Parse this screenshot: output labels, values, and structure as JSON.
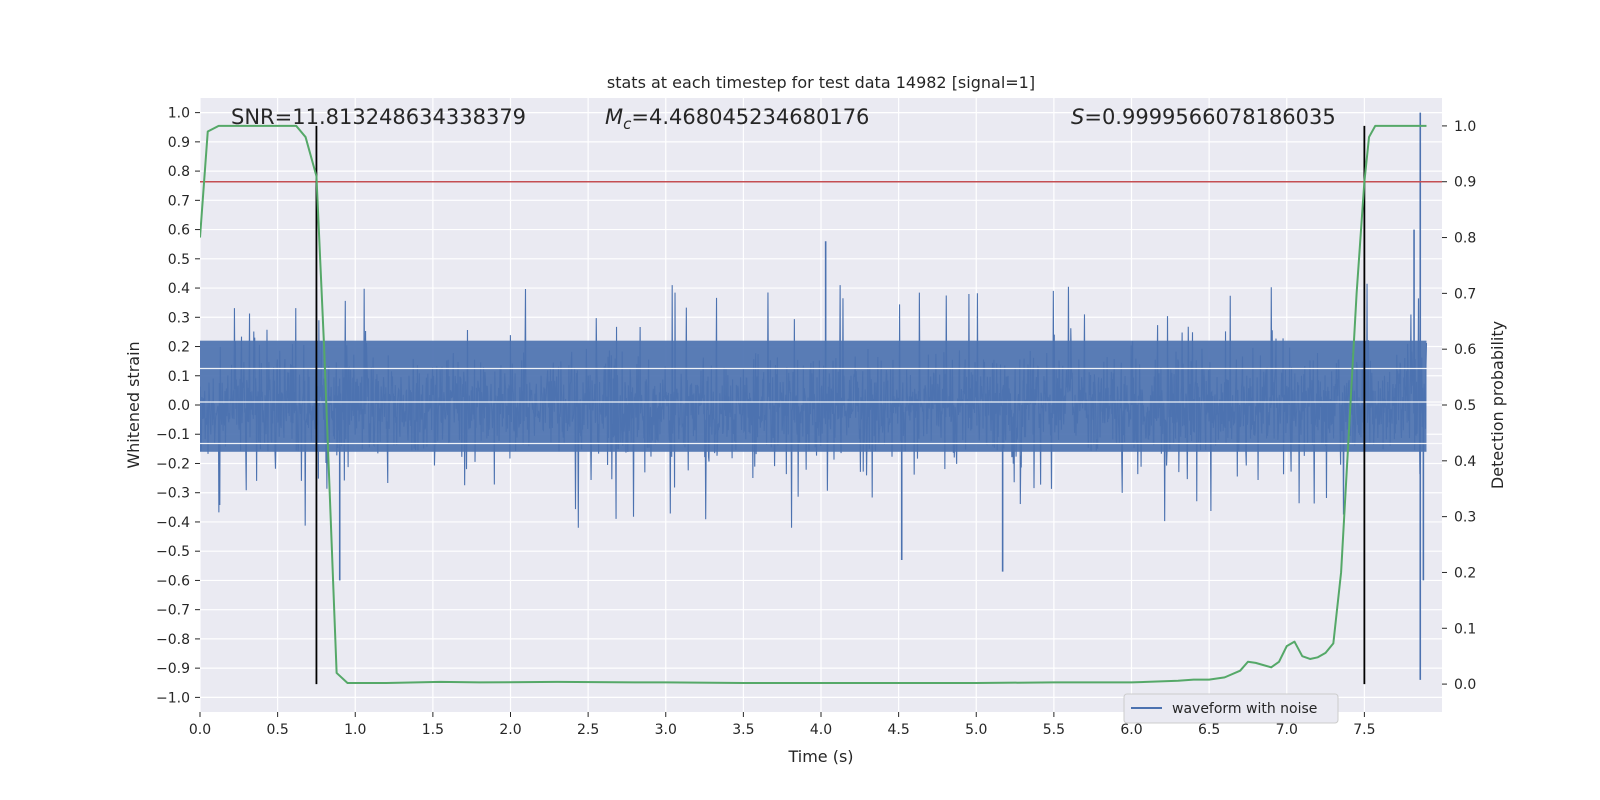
{
  "chart_data": {
    "type": "line",
    "title": "stats at each timestep for test data 14982 [signal=1]",
    "xlabel": "Time (s)",
    "ylabel": "Whitened strain",
    "ylabel_right": "Detection probability",
    "xlim": [
      0.0,
      8.0
    ],
    "ylim": [
      -1.05,
      1.05
    ],
    "ylim_right": [
      -0.05,
      1.05
    ],
    "x_ticks": [
      "0.0",
      "0.5",
      "1.0",
      "1.5",
      "2.0",
      "2.5",
      "3.0",
      "3.5",
      "4.0",
      "4.5",
      "5.0",
      "5.5",
      "6.0",
      "6.5",
      "7.0",
      "7.5"
    ],
    "y_ticks": [
      "1.0",
      "0.9",
      "0.8",
      "0.7",
      "0.6",
      "0.5",
      "0.4",
      "0.3",
      "0.2",
      "0.1",
      "0.0",
      "−0.1",
      "−0.2",
      "−0.3",
      "−0.4",
      "−0.5",
      "−0.6",
      "−0.7",
      "−0.8",
      "−0.9",
      "−1.0"
    ],
    "y_ticks_right": [
      "1.0",
      "0.9",
      "0.8",
      "0.7",
      "0.6",
      "0.5",
      "0.4",
      "0.3",
      "0.2",
      "0.1",
      "0.0"
    ],
    "grid": true,
    "legend": {
      "position": "lower-right",
      "entries": [
        "waveform with noise"
      ]
    },
    "annotations": {
      "snr": "SNR=11.813248634338379",
      "mc_symbol": "M",
      "mc_sub": "c",
      "mc_value": "=4.468045234680176",
      "s_symbol": "S",
      "s_value": "=0.9999566078186035"
    },
    "threshold": {
      "value": 0.9,
      "axis": "right",
      "color": "#c44e52"
    },
    "vlines": [
      0.75,
      7.5
    ],
    "series": [
      {
        "name": "waveform with noise",
        "axis": "left",
        "color": "#4c72b0",
        "kind": "noise",
        "core_amplitude": 0.22,
        "spike_amplitude": 0.35,
        "notable_peaks": [
          {
            "x": 7.86,
            "y": 1.0
          },
          {
            "x": 7.86,
            "y": -0.94
          },
          {
            "x": 7.82,
            "y": 0.6
          },
          {
            "x": 7.88,
            "y": -0.6
          },
          {
            "x": 0.9,
            "y": -0.6
          },
          {
            "x": 4.03,
            "y": 0.56
          },
          {
            "x": 5.17,
            "y": -0.57
          },
          {
            "x": 4.52,
            "y": -0.53
          }
        ]
      },
      {
        "axis": "right",
        "color": "#55a868",
        "kind": "line",
        "x": [
          0.0,
          0.05,
          0.12,
          0.3,
          0.5,
          0.62,
          0.68,
          0.75,
          0.8,
          0.88,
          0.95,
          1.2,
          1.55,
          1.8,
          2.3,
          2.8,
          3.0,
          3.5,
          4.0,
          4.5,
          5.0,
          5.5,
          6.0,
          6.3,
          6.4,
          6.5,
          6.6,
          6.7,
          6.75,
          6.8,
          6.85,
          6.9,
          6.95,
          7.0,
          7.05,
          7.1,
          7.15,
          7.2,
          7.25,
          7.3,
          7.35,
          7.4,
          7.45,
          7.5,
          7.53,
          7.57,
          7.63,
          7.9
        ],
        "y": [
          0.8,
          0.99,
          1.0,
          1.0,
          1.0,
          1.0,
          0.98,
          0.91,
          0.6,
          0.02,
          0.002,
          0.002,
          0.004,
          0.003,
          0.004,
          0.003,
          0.003,
          0.002,
          0.002,
          0.002,
          0.002,
          0.003,
          0.003,
          0.006,
          0.008,
          0.008,
          0.012,
          0.024,
          0.04,
          0.038,
          0.034,
          0.03,
          0.04,
          0.068,
          0.076,
          0.05,
          0.045,
          0.048,
          0.056,
          0.073,
          0.2,
          0.45,
          0.7,
          0.9,
          0.98,
          1.0,
          1.0,
          1.0
        ]
      }
    ]
  }
}
